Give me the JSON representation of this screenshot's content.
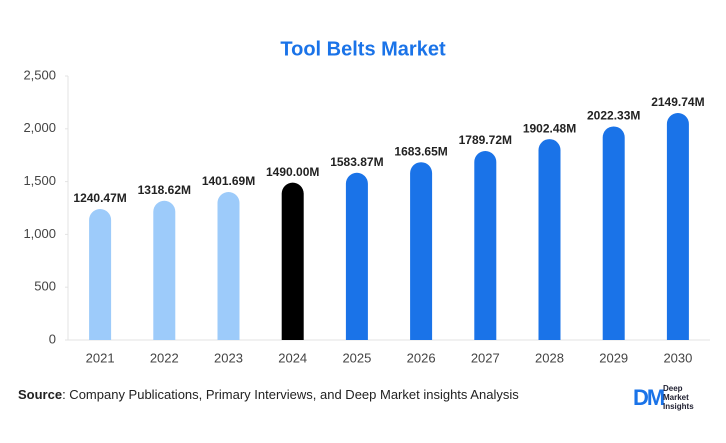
{
  "chart_data": {
    "type": "bar",
    "title": "Tool Belts Market",
    "categories": [
      "2021",
      "2022",
      "2023",
      "2024",
      "2025",
      "2026",
      "2027",
      "2028",
      "2029",
      "2030"
    ],
    "values": [
      1240.47,
      1318.62,
      1401.69,
      1490.0,
      1583.87,
      1683.65,
      1789.72,
      1902.48,
      2022.33,
      2149.74
    ],
    "value_labels": [
      "1240.47M",
      "1318.62M",
      "1401.69M",
      "1490.00M",
      "1583.87M",
      "1683.65M",
      "1789.72M",
      "1902.48M",
      "2022.33M",
      "2149.74M"
    ],
    "colors": [
      "#9dcbfa",
      "#9dcbfa",
      "#9dcbfa",
      "#000000",
      "#1a73e8",
      "#1a73e8",
      "#1a73e8",
      "#1a73e8",
      "#1a73e8",
      "#1a73e8"
    ],
    "ylim": [
      0,
      2500
    ],
    "yticks": [
      0,
      500,
      {
        "value": 1000,
        "label": "1,000"
      },
      {
        "value": 1500,
        "label": "1,500"
      },
      {
        "value": 2000,
        "label": "2,000"
      },
      {
        "value": 2500,
        "label": "2,500"
      }
    ],
    "grid": false
  },
  "footer": {
    "source_label": "Source",
    "source_text": ": Company Publications, Primary Interviews, and Deep Market insights Analysis",
    "logo": {
      "mark": "DM",
      "lines": [
        "Deep",
        "Market",
        "Insights"
      ]
    }
  }
}
